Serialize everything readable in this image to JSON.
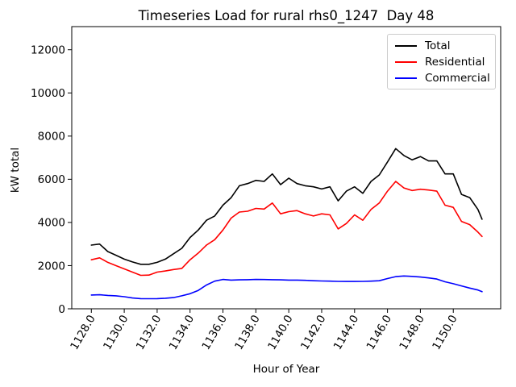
{
  "chart_data": {
    "type": "line",
    "title": "Timeseries Load for rural rhs0_1247  Day 48",
    "xlabel": "Hour of Year",
    "ylabel": "kW total",
    "grid": false,
    "legend_position": "upper right",
    "xlim": [
      1126.81,
      1152.88
    ],
    "ylim": [
      0,
      13072
    ],
    "x_ticks": [
      1128,
      1130,
      1132,
      1134,
      1136,
      1138,
      1140,
      1142,
      1144,
      1146,
      1148,
      1150
    ],
    "x_tick_labels": [
      "1128.0",
      "1130.0",
      "1132.0",
      "1134.0",
      "1136.0",
      "1138.0",
      "1140.0",
      "1142.0",
      "1144.0",
      "1146.0",
      "1148.0",
      "1150.0"
    ],
    "y_ticks": [
      0,
      2000,
      4000,
      6000,
      8000,
      10000,
      12000
    ],
    "y_tick_labels": [
      "0",
      "2000",
      "4000",
      "6000",
      "8000",
      "10000",
      "12000"
    ],
    "x": [
      1128.0,
      1128.5,
      1129.0,
      1129.5,
      1130.0,
      1130.5,
      1131.0,
      1131.5,
      1132.0,
      1132.5,
      1133.0,
      1133.5,
      1134.0,
      1134.5,
      1135.0,
      1135.5,
      1136.0,
      1136.5,
      1137.0,
      1137.5,
      1138.0,
      1138.5,
      1139.0,
      1139.5,
      1140.0,
      1140.5,
      1141.0,
      1141.5,
      1142.0,
      1142.5,
      1143.0,
      1143.5,
      1144.0,
      1144.5,
      1145.0,
      1145.5,
      1146.0,
      1146.5,
      1147.0,
      1147.5,
      1148.0,
      1148.5,
      1149.0,
      1149.5,
      1150.0,
      1150.5,
      1151.0,
      1151.5,
      1151.75
    ],
    "series": [
      {
        "name": "Total",
        "color": "#000000",
        "values": [
          2950,
          3000,
          2650,
          2480,
          2300,
          2170,
          2060,
          2060,
          2150,
          2300,
          2550,
          2800,
          3300,
          3650,
          4100,
          4300,
          4800,
          5150,
          5700,
          5800,
          5950,
          5900,
          6250,
          5750,
          6050,
          5800,
          5700,
          5650,
          5550,
          5650,
          5000,
          5450,
          5650,
          5350,
          5900,
          6200,
          6800,
          7420,
          7100,
          6900,
          7050,
          6850,
          6850,
          6250,
          6250,
          5300,
          5150,
          4600,
          4150
        ]
      },
      {
        "name": "Residential",
        "color": "#ff0000",
        "values": [
          2270,
          2360,
          2150,
          2000,
          1850,
          1700,
          1550,
          1560,
          1700,
          1750,
          1820,
          1870,
          2270,
          2580,
          2950,
          3200,
          3650,
          4200,
          4480,
          4520,
          4650,
          4620,
          4900,
          4400,
          4500,
          4550,
          4400,
          4300,
          4400,
          4350,
          3700,
          3950,
          4350,
          4100,
          4600,
          4900,
          5450,
          5900,
          5600,
          5480,
          5540,
          5500,
          5450,
          4800,
          4700,
          4050,
          3900,
          3550,
          3350
        ]
      },
      {
        "name": "Commercial",
        "color": "#0000ff",
        "values": [
          640,
          650,
          620,
          600,
          560,
          500,
          470,
          465,
          470,
          490,
          520,
          600,
          700,
          850,
          1100,
          1280,
          1360,
          1330,
          1340,
          1350,
          1360,
          1355,
          1350,
          1340,
          1330,
          1330,
          1320,
          1300,
          1290,
          1280,
          1270,
          1265,
          1265,
          1270,
          1280,
          1300,
          1400,
          1490,
          1520,
          1500,
          1470,
          1430,
          1380,
          1250,
          1160,
          1060,
          960,
          870,
          790
        ]
      }
    ]
  }
}
